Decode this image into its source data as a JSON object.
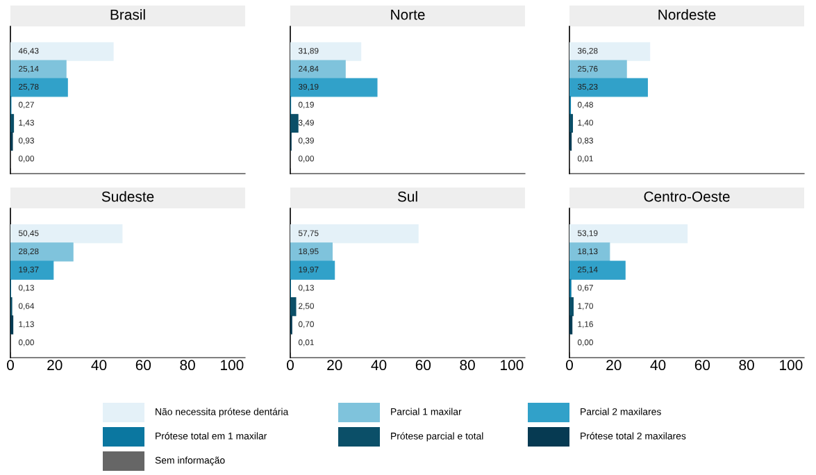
{
  "chart_data": [
    {
      "type": "bar",
      "orientation": "horizontal",
      "title": "Brasil",
      "categories": [
        null
      ],
      "xlim": [
        0,
        106
      ],
      "xticks": [
        0,
        20,
        40,
        60,
        80,
        100
      ],
      "tick_labels": false,
      "grid": false,
      "legend": "bottom",
      "series": [
        {
          "name": "Não necessita prótese dentária",
          "color": "#e4f1f8",
          "values": [
            46.43
          ],
          "value_labels": [
            "46,43"
          ]
        },
        {
          "name": "Parcial 1 maxilar",
          "color": "#7fc3dc",
          "values": [
            25.14
          ],
          "value_labels": [
            "25,14"
          ]
        },
        {
          "name": "Parcial 2 maxilares",
          "color": "#31a1c9",
          "values": [
            25.78
          ],
          "value_labels": [
            "25,78"
          ]
        },
        {
          "name": "Prótese total em 1 maxilar",
          "color": "#0b77a0",
          "values": [
            0.27
          ],
          "value_labels": [
            "0,27"
          ]
        },
        {
          "name": "Prótese parcial e total",
          "color": "#0b4f68",
          "values": [
            1.43
          ],
          "value_labels": [
            "1,43"
          ]
        },
        {
          "name": "Prótese total 2 maxilares",
          "color": "#063a52",
          "values": [
            0.93
          ],
          "value_labels": [
            "0,93"
          ]
        },
        {
          "name": "Sem informação",
          "color": "#666666",
          "values": [
            0.0
          ],
          "value_labels": [
            "0,00"
          ]
        }
      ]
    },
    {
      "type": "bar",
      "orientation": "horizontal",
      "title": "Norte",
      "categories": [
        null
      ],
      "xlim": [
        0,
        106
      ],
      "xticks": [
        0,
        20,
        40,
        60,
        80,
        100
      ],
      "tick_labels": false,
      "grid": false,
      "series": [
        {
          "color": "#e4f1f8",
          "values": [
            31.89
          ],
          "value_labels": [
            "31,89"
          ]
        },
        {
          "color": "#7fc3dc",
          "values": [
            24.84
          ],
          "value_labels": [
            "24,84"
          ]
        },
        {
          "color": "#31a1c9",
          "values": [
            39.19
          ],
          "value_labels": [
            "39,19"
          ]
        },
        {
          "color": "#0b77a0",
          "values": [
            0.19
          ],
          "value_labels": [
            "0,19"
          ]
        },
        {
          "color": "#0b4f68",
          "values": [
            3.49
          ],
          "value_labels": [
            "3,49"
          ]
        },
        {
          "color": "#063a52",
          "values": [
            0.39
          ],
          "value_labels": [
            "0,39"
          ]
        },
        {
          "color": "#666666",
          "values": [
            0.0
          ],
          "value_labels": [
            "0,00"
          ]
        }
      ]
    },
    {
      "type": "bar",
      "orientation": "horizontal",
      "title": "Nordeste",
      "categories": [
        null
      ],
      "xlim": [
        0,
        106
      ],
      "xticks": [
        0,
        20,
        40,
        60,
        80,
        100
      ],
      "tick_labels": false,
      "grid": false,
      "series": [
        {
          "color": "#e4f1f8",
          "values": [
            36.28
          ],
          "value_labels": [
            "36,28"
          ]
        },
        {
          "color": "#7fc3dc",
          "values": [
            25.76
          ],
          "value_labels": [
            "25,76"
          ]
        },
        {
          "color": "#31a1c9",
          "values": [
            35.23
          ],
          "value_labels": [
            "35,23"
          ]
        },
        {
          "color": "#0b77a0",
          "values": [
            0.48
          ],
          "value_labels": [
            "0,48"
          ]
        },
        {
          "color": "#0b4f68",
          "values": [
            1.4
          ],
          "value_labels": [
            "1,40"
          ]
        },
        {
          "color": "#063a52",
          "values": [
            0.83
          ],
          "value_labels": [
            "0,83"
          ]
        },
        {
          "color": "#666666",
          "values": [
            0.01
          ],
          "value_labels": [
            "0,01"
          ]
        }
      ]
    },
    {
      "type": "bar",
      "orientation": "horizontal",
      "title": "Sudeste",
      "categories": [
        null
      ],
      "xlim": [
        0,
        106
      ],
      "xticks": [
        0,
        20,
        40,
        60,
        80,
        100
      ],
      "tick_labels": "x",
      "grid": false,
      "series": [
        {
          "color": "#e4f1f8",
          "values": [
            50.45
          ],
          "value_labels": [
            "50,45"
          ]
        },
        {
          "color": "#7fc3dc",
          "values": [
            28.28
          ],
          "value_labels": [
            "28,28"
          ]
        },
        {
          "color": "#31a1c9",
          "values": [
            19.37
          ],
          "value_labels": [
            "19,37"
          ]
        },
        {
          "color": "#0b77a0",
          "values": [
            0.13
          ],
          "value_labels": [
            "0,13"
          ]
        },
        {
          "color": "#0b4f68",
          "values": [
            0.64
          ],
          "value_labels": [
            "0,64"
          ]
        },
        {
          "color": "#063a52",
          "values": [
            1.13
          ],
          "value_labels": [
            "1,13"
          ]
        },
        {
          "color": "#666666",
          "values": [
            0.0
          ],
          "value_labels": [
            "0,00"
          ]
        }
      ]
    },
    {
      "type": "bar",
      "orientation": "horizontal",
      "title": "Sul",
      "categories": [
        null
      ],
      "xlim": [
        0,
        106
      ],
      "xticks": [
        0,
        20,
        40,
        60,
        80,
        100
      ],
      "tick_labels": "x",
      "grid": false,
      "series": [
        {
          "color": "#e4f1f8",
          "values": [
            57.75
          ],
          "value_labels": [
            "57,75"
          ]
        },
        {
          "color": "#7fc3dc",
          "values": [
            18.95
          ],
          "value_labels": [
            "18,95"
          ]
        },
        {
          "color": "#31a1c9",
          "values": [
            19.97
          ],
          "value_labels": [
            "19,97"
          ]
        },
        {
          "color": "#0b77a0",
          "values": [
            0.13
          ],
          "value_labels": [
            "0,13"
          ]
        },
        {
          "color": "#0b4f68",
          "values": [
            2.5
          ],
          "value_labels": [
            "2,50"
          ]
        },
        {
          "color": "#063a52",
          "values": [
            0.7
          ],
          "value_labels": [
            "0,70"
          ]
        },
        {
          "color": "#666666",
          "values": [
            0.01
          ],
          "value_labels": [
            "0,01"
          ]
        }
      ]
    },
    {
      "type": "bar",
      "orientation": "horizontal",
      "title": "Centro-Oeste",
      "categories": [
        null
      ],
      "xlim": [
        0,
        106
      ],
      "xticks": [
        0,
        20,
        40,
        60,
        80,
        100
      ],
      "tick_labels": "x",
      "grid": false,
      "series": [
        {
          "color": "#e4f1f8",
          "values": [
            53.19
          ],
          "value_labels": [
            "53,19"
          ]
        },
        {
          "color": "#7fc3dc",
          "values": [
            18.13
          ],
          "value_labels": [
            "18,13"
          ]
        },
        {
          "color": "#31a1c9",
          "values": [
            25.14
          ],
          "value_labels": [
            "25,14"
          ]
        },
        {
          "color": "#0b77a0",
          "values": [
            0.67
          ],
          "value_labels": [
            "0,67"
          ]
        },
        {
          "color": "#0b4f68",
          "values": [
            1.7
          ],
          "value_labels": [
            "1,70"
          ]
        },
        {
          "color": "#063a52",
          "values": [
            1.16
          ],
          "value_labels": [
            "1,16"
          ]
        },
        {
          "color": "#666666",
          "values": [
            0.0
          ],
          "value_labels": [
            "0,00"
          ]
        }
      ]
    }
  ]
}
